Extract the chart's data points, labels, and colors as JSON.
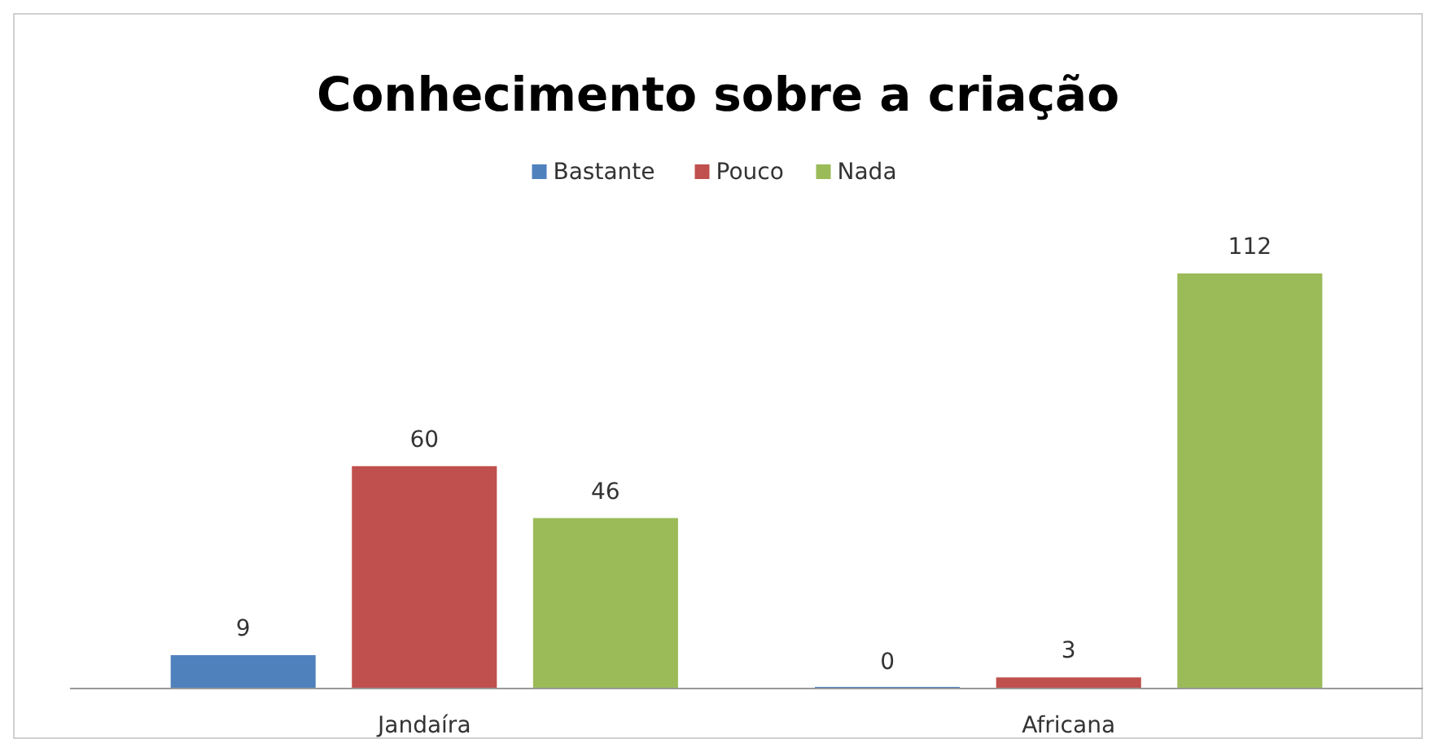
{
  "chart_data": {
    "type": "bar",
    "title": "Conhecimento sobre a criação",
    "categories": [
      "Jandaíra",
      "Africana"
    ],
    "series": [
      {
        "name": "Bastante",
        "color": "#4f81bd",
        "values": [
          9,
          0
        ]
      },
      {
        "name": "Pouco",
        "color": "#c0504d",
        "values": [
          60,
          3
        ]
      },
      {
        "name": "Nada",
        "color": "#9bbb59",
        "values": [
          46,
          112
        ]
      }
    ],
    "data_labels": true,
    "legend": "top",
    "grid": false
  }
}
